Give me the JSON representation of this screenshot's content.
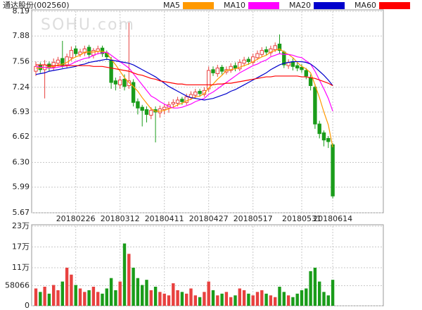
{
  "chart_data": [
    {
      "type": "candlestick",
      "title": "通达股份(002560)",
      "watermark": "SOHU.com",
      "categories": [
        null,
        null,
        null,
        null,
        null,
        null,
        null,
        null,
        null,
        "20180226",
        null,
        null,
        null,
        null,
        null,
        null,
        null,
        null,
        null,
        "20180312",
        null,
        null,
        null,
        null,
        null,
        null,
        null,
        null,
        null,
        "20180411",
        null,
        null,
        null,
        null,
        null,
        null,
        null,
        null,
        null,
        "20180427",
        null,
        null,
        null,
        null,
        null,
        null,
        null,
        null,
        null,
        "20180517",
        null,
        null,
        null,
        null,
        null,
        null,
        null,
        null,
        null,
        null,
        "20180531",
        null,
        null,
        null,
        null,
        null,
        null,
        "20180614"
      ],
      "open": [
        7.44,
        7.52,
        7.46,
        7.53,
        7.49,
        7.54,
        7.6,
        7.52,
        7.61,
        7.72,
        7.65,
        7.67,
        7.74,
        7.64,
        7.69,
        7.73,
        7.67,
        7.58,
        7.32,
        7.27,
        7.34,
        7.26,
        7.3,
        7.06,
        6.99,
        6.96,
        6.89,
        6.96,
        6.92,
        6.96,
        6.98,
        7.03,
        7.04,
        7.09,
        7.05,
        7.11,
        7.14,
        7.19,
        7.15,
        7.22,
        7.46,
        7.41,
        7.49,
        7.43,
        7.45,
        7.51,
        7.47,
        7.54,
        7.59,
        7.55,
        7.61,
        7.65,
        7.71,
        7.67,
        7.71,
        7.78,
        7.68,
        7.51,
        7.56,
        7.51,
        7.49,
        7.45,
        7.36,
        7.24,
        6.78,
        6.67,
        6.6,
        6.52
      ],
      "high": [
        7.56,
        7.55,
        7.58,
        7.56,
        7.6,
        7.62,
        7.82,
        7.66,
        7.75,
        7.76,
        7.72,
        7.76,
        7.77,
        7.73,
        7.76,
        7.76,
        7.7,
        7.62,
        7.36,
        7.38,
        7.4,
        8.05,
        7.34,
        7.1,
        7.02,
        7.0,
        6.99,
        7.0,
        7.01,
        7.03,
        7.06,
        7.09,
        7.12,
        7.12,
        7.16,
        7.19,
        7.22,
        7.22,
        7.24,
        7.5,
        7.5,
        7.52,
        7.52,
        7.5,
        7.54,
        7.55,
        7.59,
        7.62,
        7.62,
        7.66,
        7.7,
        7.74,
        7.75,
        7.76,
        7.8,
        7.9,
        7.7,
        7.59,
        7.6,
        7.55,
        7.53,
        7.48,
        7.4,
        7.28,
        6.82,
        6.7,
        6.63,
        6.54
      ],
      "low": [
        7.38,
        7.42,
        7.1,
        7.44,
        7.45,
        7.5,
        7.48,
        7.48,
        7.57,
        7.62,
        7.62,
        7.63,
        7.6,
        7.6,
        7.65,
        7.62,
        7.58,
        7.22,
        7.2,
        7.22,
        7.2,
        7.22,
        7.0,
        6.9,
        6.75,
        6.8,
        6.84,
        6.55,
        6.86,
        6.9,
        6.92,
        6.98,
        7.0,
        7.02,
        7.02,
        7.08,
        7.1,
        7.12,
        7.12,
        7.18,
        7.38,
        7.37,
        7.4,
        7.4,
        7.42,
        7.44,
        7.44,
        7.5,
        7.52,
        7.52,
        7.58,
        7.62,
        7.64,
        7.63,
        7.68,
        7.66,
        7.48,
        7.47,
        7.45,
        7.44,
        7.42,
        7.34,
        7.2,
        6.72,
        6.6,
        6.5,
        6.48,
        5.85
      ],
      "close": [
        7.5,
        7.46,
        7.52,
        7.48,
        7.55,
        7.58,
        7.52,
        7.62,
        7.7,
        7.66,
        7.68,
        7.72,
        7.65,
        7.7,
        7.72,
        7.66,
        7.62,
        7.3,
        7.28,
        7.33,
        7.25,
        7.32,
        7.05,
        6.98,
        6.95,
        6.9,
        6.95,
        6.93,
        6.97,
        6.99,
        7.02,
        7.05,
        7.08,
        7.06,
        7.12,
        7.15,
        7.18,
        7.16,
        7.2,
        7.45,
        7.42,
        7.48,
        7.44,
        7.46,
        7.5,
        7.48,
        7.55,
        7.58,
        7.56,
        7.62,
        7.66,
        7.7,
        7.68,
        7.72,
        7.76,
        7.7,
        7.52,
        7.55,
        7.5,
        7.48,
        7.46,
        7.38,
        7.26,
        6.78,
        6.66,
        6.58,
        6.56,
        5.88
      ],
      "series": [
        {
          "name": "MA5",
          "color": "#ff9900",
          "values": [
            7.48,
            7.48,
            7.49,
            7.49,
            7.5,
            7.52,
            7.53,
            7.55,
            7.59,
            7.62,
            7.64,
            7.68,
            7.68,
            7.68,
            7.69,
            7.69,
            7.67,
            7.59,
            7.52,
            7.44,
            7.36,
            7.3,
            7.25,
            7.19,
            7.11,
            7.04,
            6.97,
            6.94,
            6.94,
            6.95,
            6.97,
            6.99,
            7.02,
            7.04,
            7.07,
            7.09,
            7.12,
            7.13,
            7.16,
            7.23,
            7.28,
            7.34,
            7.39,
            7.45,
            7.46,
            7.47,
            7.49,
            7.51,
            7.53,
            7.56,
            7.59,
            7.62,
            7.64,
            7.68,
            7.7,
            7.72,
            7.68,
            7.65,
            7.61,
            7.55,
            7.5,
            7.47,
            7.42,
            7.27,
            7.11,
            6.93,
            6.77,
            6.49
          ]
        },
        {
          "name": "MA10",
          "color": "#ff00ff",
          "values": [
            7.5,
            7.49,
            7.49,
            7.48,
            7.48,
            7.49,
            7.5,
            7.51,
            7.53,
            7.56,
            7.58,
            7.6,
            7.61,
            7.64,
            7.66,
            7.67,
            7.68,
            7.64,
            7.6,
            7.56,
            7.52,
            7.48,
            7.41,
            7.34,
            7.27,
            7.2,
            7.13,
            7.1,
            7.06,
            7.03,
            7.0,
            6.98,
            6.98,
            6.99,
            7.01,
            7.03,
            7.06,
            7.08,
            7.1,
            7.15,
            7.18,
            7.22,
            7.26,
            7.3,
            7.34,
            7.38,
            7.42,
            7.45,
            7.48,
            7.51,
            7.53,
            7.56,
            7.58,
            7.62,
            7.64,
            7.66,
            7.65,
            7.65,
            7.64,
            7.62,
            7.61,
            7.57,
            7.53,
            7.44,
            7.33,
            7.22,
            7.1,
            6.94
          ]
        },
        {
          "name": "MA20",
          "color": "#0000cc",
          "values": [
            7.4,
            7.41,
            7.42,
            7.44,
            7.45,
            7.46,
            7.47,
            7.48,
            7.49,
            7.5,
            7.52,
            7.53,
            7.55,
            7.56,
            7.57,
            7.58,
            7.59,
            7.58,
            7.57,
            7.56,
            7.55,
            7.54,
            7.52,
            7.49,
            7.46,
            7.43,
            7.4,
            7.37,
            7.33,
            7.29,
            7.25,
            7.22,
            7.19,
            7.16,
            7.13,
            7.11,
            7.1,
            7.09,
            7.08,
            7.09,
            7.1,
            7.12,
            7.14,
            7.16,
            7.19,
            7.21,
            7.24,
            7.27,
            7.3,
            7.33,
            7.36,
            7.39,
            7.42,
            7.46,
            7.49,
            7.52,
            7.54,
            7.55,
            7.56,
            7.56,
            7.56,
            7.55,
            7.53,
            7.49,
            7.44,
            7.39,
            7.33,
            7.26
          ]
        },
        {
          "name": "MA60",
          "color": "#ff0000",
          "values": [
            7.52,
            7.52,
            7.52,
            7.51,
            7.51,
            7.51,
            7.51,
            7.51,
            7.51,
            7.51,
            7.51,
            7.51,
            7.51,
            7.5,
            7.5,
            7.5,
            7.49,
            7.48,
            7.47,
            7.46,
            7.45,
            7.44,
            7.42,
            7.4,
            7.39,
            7.37,
            7.35,
            7.34,
            7.32,
            7.31,
            7.3,
            7.29,
            7.28,
            7.28,
            7.27,
            7.27,
            7.27,
            7.27,
            7.27,
            7.27,
            7.27,
            7.28,
            7.28,
            7.29,
            7.29,
            7.3,
            7.31,
            7.32,
            7.33,
            7.34,
            7.35,
            7.36,
            7.37,
            7.37,
            7.38,
            7.38,
            7.38,
            7.38,
            7.38,
            7.38,
            7.37,
            7.37,
            7.36,
            7.35,
            7.33,
            7.31,
            7.29,
            7.26
          ]
        }
      ],
      "up_color": "#e8413f",
      "down_color": "#1a9c1a",
      "ylim": [
        5.67,
        8.19
      ],
      "yticks": [
        5.67,
        5.99,
        {
          "value": 6.3,
          "label": "6.30"
        },
        6.62,
        6.93,
        7.24,
        7.56,
        7.88,
        8.19
      ],
      "grid": true
    },
    {
      "type": "bar",
      "values": [
        50000,
        40000,
        55000,
        35000,
        60000,
        45000,
        70000,
        110000,
        90000,
        60000,
        50000,
        40000,
        45000,
        55000,
        40000,
        35000,
        50000,
        80000,
        45000,
        70000,
        180000,
        150000,
        110000,
        80000,
        60000,
        75000,
        45000,
        55000,
        40000,
        35000,
        30000,
        65000,
        45000,
        40000,
        35000,
        50000,
        30000,
        25000,
        40000,
        70000,
        45000,
        30000,
        35000,
        40000,
        25000,
        30000,
        50000,
        45000,
        35000,
        30000,
        40000,
        45000,
        35000,
        30000,
        25000,
        55000,
        40000,
        30000,
        25000,
        35000,
        45000,
        50000,
        100000,
        110000,
        70000,
        40000,
        30000,
        75000
      ],
      "ylim": [
        0,
        230000
      ],
      "yticks": [
        0,
        58066,
        {
          "value": 110000,
          "label": "11万"
        },
        {
          "value": 170000,
          "label": "17万"
        },
        {
          "value": 230000,
          "label": "23万"
        }
      ],
      "grid": true
    }
  ]
}
